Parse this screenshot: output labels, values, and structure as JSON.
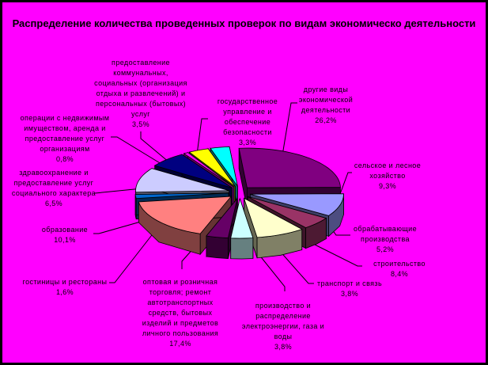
{
  "chart_data": {
    "type": "pie",
    "style": "3d-exploded",
    "title": "Распределение количества проведенных проверок по видам экономическо деятельности",
    "background": "#ff00ff",
    "legend": "none",
    "slices": [
      {
        "label": "другие виды экономической деятельности",
        "value": 26.2,
        "value_label": "26,2%",
        "color": "#800080"
      },
      {
        "label": "сельское и лесное хозяйство",
        "value": 9.3,
        "value_label": "9,3%",
        "color": "#9999ff"
      },
      {
        "label": "обрабатывающие производства",
        "value": 5.2,
        "value_label": "5,2%",
        "color": "#993366"
      },
      {
        "label": "строительство",
        "value": 8.4,
        "value_label": "8,4%",
        "color": "#ffffcc"
      },
      {
        "label": "транспорт и связь",
        "value": 3.8,
        "value_label": "3,8%",
        "color": "#ccffff"
      },
      {
        "label": "производство и распределение электроэнергии, газа и воды",
        "value": 3.8,
        "value_label": "3,8%",
        "color": "#660066"
      },
      {
        "label": "оптовая и розничная торговля; ремонт автотранспортных средств, бытовых изделий и предметов личного пользования",
        "value": 17.4,
        "value_label": "17,4%",
        "color": "#ff8080"
      },
      {
        "label": "гостиницы и рестораны",
        "value": 1.6,
        "value_label": "1,6%",
        "color": "#0066cc"
      },
      {
        "label": "образование",
        "value": 10.1,
        "value_label": "10,1%",
        "color": "#ccccff"
      },
      {
        "label": "здравоохранение и предоставление услуг социального характера",
        "value": 6.5,
        "value_label": "6,5%",
        "color": "#000080"
      },
      {
        "label": "операции с недвижимым имуществом, аренда и предоставление услуг организациям",
        "value": 0.8,
        "value_label": "0,8%",
        "color": "#ff00ff"
      },
      {
        "label": "предоставление коммунальных, социальных (организация отдыха и развлечений) и персональных (бытовых) услуг",
        "value": 3.5,
        "value_label": "3,5%",
        "color": "#ffff00"
      },
      {
        "label": "государственное управление и обеспечение безопасности",
        "value": 3.3,
        "value_label": "3,3%",
        "color": "#00ffff"
      }
    ]
  },
  "labels": [
    {
      "lines": [
        "другие виды",
        "экономической",
        "деятельности"
      ],
      "pct": "26,2%"
    },
    {
      "lines": [
        "сельское и лесное",
        "хозяйство"
      ],
      "pct": "9,3%"
    },
    {
      "lines": [
        "обрабатывающие",
        "производства"
      ],
      "pct": "5,2%"
    },
    {
      "lines": [
        "строительство"
      ],
      "pct": "8,4%"
    },
    {
      "lines": [
        "транспорт и связь"
      ],
      "pct": "3,8%"
    },
    {
      "lines": [
        "производство и",
        "распределение",
        "электроэнергии, газа и",
        "воды"
      ],
      "pct": "3,8%"
    },
    {
      "lines": [
        "оптовая и розничная",
        "торговля; ремонт",
        "автотранспортных",
        "средств, бытовых",
        "изделий и предметов",
        "личного пользования"
      ],
      "pct": "17,4%"
    },
    {
      "lines": [
        "гостиницы и рестораны"
      ],
      "pct": "1,6%"
    },
    {
      "lines": [
        "образование"
      ],
      "pct": "10,1%"
    },
    {
      "lines": [
        "здравоохранение и",
        "предоставление услуг",
        "социального характера"
      ],
      "pct": "6,5%"
    },
    {
      "lines": [
        "операции с недвижимым",
        "имуществом, аренда и",
        "предоставление услуг",
        "организациям"
      ],
      "pct": "0,8%"
    },
    {
      "lines": [
        "предоставление",
        "коммунальных,",
        "социальных (организация",
        "отдыха и развлечений) и",
        "персональных (бытовых)",
        "услуг"
      ],
      "pct": "3,5%"
    },
    {
      "lines": [
        "государственное",
        "управление и",
        "обеспечение",
        "безопасности"
      ],
      "pct": "3,3%"
    }
  ]
}
